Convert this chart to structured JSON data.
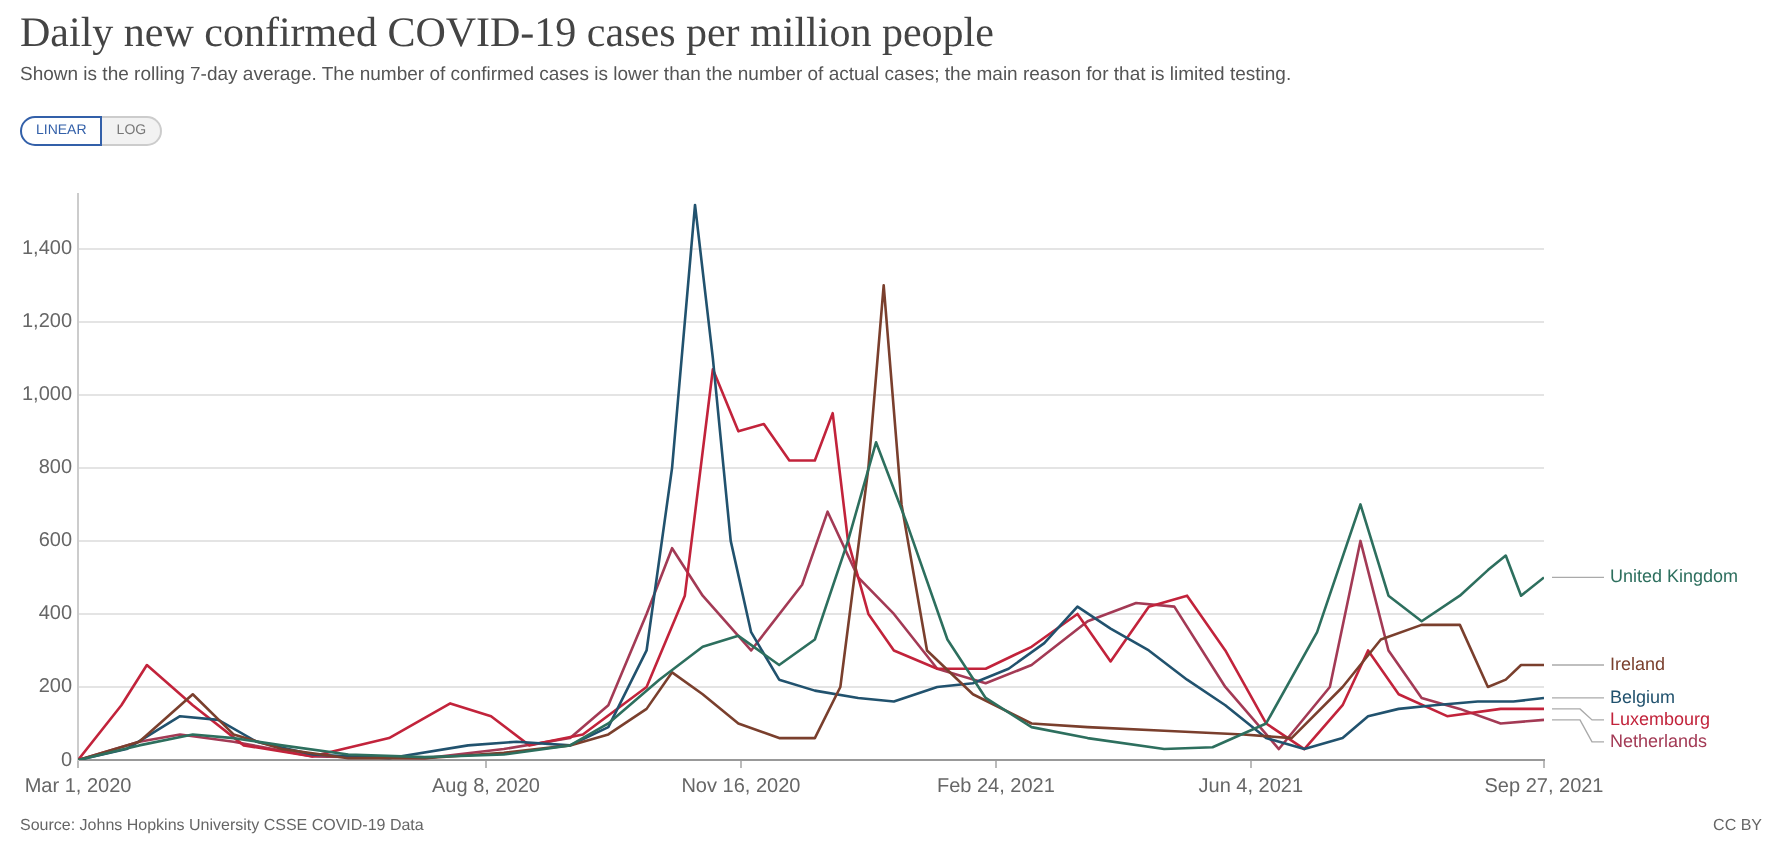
{
  "chart_data": {
    "type": "line",
    "title": "Daily new confirmed COVID-19 cases per million people",
    "subtitle": "Shown is the rolling 7-day average. The number of confirmed cases is lower than the number of actual cases; the main reason for that is limited testing.",
    "annotations": [
      "LINEAR",
      "LOG",
      "Source: Johns Hopkins University CSSE COVID-19 Data",
      "CC BY"
    ],
    "xlim": [
      "2020-03-01",
      "2021-09-27"
    ],
    "xticks": [
      {
        "value": "2020-03-01",
        "label": "Mar 1, 2020"
      },
      {
        "value": "2020-08-08",
        "label": "Aug 8, 2020"
      },
      {
        "value": "2020-11-16",
        "label": "Nov 16, 2020"
      },
      {
        "value": "2021-02-24",
        "label": "Feb 24, 2021"
      },
      {
        "value": "2021-06-04",
        "label": "Jun 4, 2021"
      },
      {
        "value": "2021-09-27",
        "label": "Sep 27, 2021"
      }
    ],
    "ylim": [
      0,
      1550
    ],
    "yticks": [
      0,
      {
        "value": 200,
        "label": "200"
      },
      {
        "value": 400,
        "label": "400"
      },
      {
        "value": 600,
        "label": "600"
      },
      {
        "value": 800,
        "label": "800"
      },
      {
        "value": 1000,
        "label": "1,000"
      },
      {
        "value": 1200,
        "label": "1,200"
      },
      {
        "value": 1400,
        "label": "1,400"
      }
    ],
    "grid": "y",
    "line_style": "solid",
    "series": [
      {
        "name": "United Kingdom",
        "color": "#2d6f5e",
        "x": [
          "2020-03-01",
          "2020-03-25",
          "2020-04-15",
          "2020-05-01",
          "2020-05-20",
          "2020-06-15",
          "2020-07-15",
          "2020-08-15",
          "2020-09-10",
          "2020-09-25",
          "2020-10-15",
          "2020-11-01",
          "2020-11-15",
          "2020-12-01",
          "2020-12-15",
          "2020-12-28",
          "2021-01-08",
          "2021-01-20",
          "2021-02-05",
          "2021-02-20",
          "2021-03-10",
          "2021-04-01",
          "2021-05-01",
          "2021-05-20",
          "2021-06-10",
          "2021-06-30",
          "2021-07-17",
          "2021-07-28",
          "2021-08-10",
          "2021-08-25",
          "2021-09-05",
          "2021-09-12",
          "2021-09-18",
          "2021-09-27"
        ],
        "values": [
          0,
          40,
          70,
          60,
          40,
          15,
          8,
          15,
          40,
          100,
          220,
          310,
          340,
          260,
          330,
          600,
          870,
          650,
          330,
          170,
          90,
          60,
          30,
          35,
          100,
          350,
          700,
          450,
          380,
          450,
          520,
          560,
          450,
          500
        ]
      },
      {
        "name": "Ireland",
        "color": "#7a3f2d",
        "x": [
          "2020-03-01",
          "2020-03-25",
          "2020-04-15",
          "2020-05-01",
          "2020-05-20",
          "2020-06-15",
          "2020-07-15",
          "2020-08-15",
          "2020-09-10",
          "2020-09-25",
          "2020-10-10",
          "2020-10-20",
          "2020-11-01",
          "2020-11-15",
          "2020-12-01",
          "2020-12-15",
          "2020-12-25",
          "2021-01-05",
          "2021-01-11",
          "2021-01-18",
          "2021-01-28",
          "2021-02-15",
          "2021-03-10",
          "2021-04-01",
          "2021-05-01",
          "2021-06-01",
          "2021-06-20",
          "2021-07-10",
          "2021-07-25",
          "2021-08-10",
          "2021-08-25",
          "2021-09-05",
          "2021-09-12",
          "2021-09-18",
          "2021-09-27"
        ],
        "values": [
          0,
          50,
          180,
          70,
          30,
          5,
          5,
          20,
          40,
          70,
          140,
          240,
          180,
          100,
          60,
          60,
          200,
          800,
          1300,
          700,
          300,
          180,
          100,
          90,
          80,
          70,
          60,
          200,
          330,
          370,
          370,
          200,
          220,
          260,
          260
        ]
      },
      {
        "name": "Belgium",
        "color": "#21526e",
        "x": [
          "2020-03-01",
          "2020-03-20",
          "2020-04-10",
          "2020-04-25",
          "2020-05-10",
          "2020-06-01",
          "2020-07-01",
          "2020-08-01",
          "2020-08-20",
          "2020-09-10",
          "2020-09-25",
          "2020-10-10",
          "2020-10-20",
          "2020-10-29",
          "2020-11-05",
          "2020-11-12",
          "2020-11-20",
          "2020-12-01",
          "2020-12-15",
          "2021-01-01",
          "2021-01-15",
          "2021-02-01",
          "2021-02-15",
          "2021-03-01",
          "2021-03-15",
          "2021-03-28",
          "2021-04-10",
          "2021-04-25",
          "2021-05-10",
          "2021-05-25",
          "2021-06-10",
          "2021-06-25",
          "2021-07-10",
          "2021-07-20",
          "2021-08-01",
          "2021-08-15",
          "2021-09-01",
          "2021-09-15",
          "2021-09-27"
        ],
        "values": [
          0,
          30,
          120,
          110,
          50,
          15,
          5,
          40,
          50,
          40,
          90,
          300,
          800,
          1520,
          1100,
          600,
          350,
          220,
          190,
          170,
          160,
          200,
          210,
          250,
          320,
          420,
          360,
          300,
          220,
          150,
          60,
          30,
          60,
          120,
          140,
          150,
          160,
          160,
          170
        ]
      },
      {
        "name": "Luxembourg",
        "color": "#c2233b",
        "x": [
          "2020-03-01",
          "2020-03-18",
          "2020-03-28",
          "2020-04-15",
          "2020-05-05",
          "2020-06-01",
          "2020-07-01",
          "2020-07-25",
          "2020-08-10",
          "2020-08-25",
          "2020-09-15",
          "2020-10-10",
          "2020-10-25",
          "2020-11-05",
          "2020-11-15",
          "2020-11-25",
          "2020-12-05",
          "2020-12-15",
          "2020-12-22",
          "2020-12-28",
          "2021-01-05",
          "2021-01-15",
          "2021-02-01",
          "2021-02-20",
          "2021-03-10",
          "2021-03-28",
          "2021-04-10",
          "2021-04-25",
          "2021-05-10",
          "2021-05-25",
          "2021-06-10",
          "2021-06-25",
          "2021-07-10",
          "2021-07-20",
          "2021-08-01",
          "2021-08-20",
          "2021-09-10",
          "2021-09-27"
        ],
        "values": [
          0,
          150,
          260,
          150,
          40,
          10,
          60,
          155,
          120,
          40,
          70,
          200,
          450,
          1070,
          900,
          920,
          820,
          820,
          950,
          600,
          400,
          300,
          250,
          250,
          310,
          400,
          270,
          420,
          450,
          300,
          100,
          30,
          150,
          300,
          180,
          120,
          140,
          140
        ]
      },
      {
        "name": "Netherlands",
        "color": "#a33a55",
        "x": [
          "2020-03-01",
          "2020-03-25",
          "2020-04-10",
          "2020-05-01",
          "2020-06-01",
          "2020-07-15",
          "2020-08-15",
          "2020-09-10",
          "2020-09-25",
          "2020-10-10",
          "2020-10-20",
          "2020-11-01",
          "2020-11-20",
          "2020-12-10",
          "2020-12-20",
          "2021-01-01",
          "2021-01-15",
          "2021-02-01",
          "2021-02-20",
          "2021-03-10",
          "2021-04-01",
          "2021-04-20",
          "2021-05-05",
          "2021-05-25",
          "2021-06-15",
          "2021-07-05",
          "2021-07-17",
          "2021-07-28",
          "2021-08-10",
          "2021-08-25",
          "2021-09-10",
          "2021-09-27"
        ],
        "values": [
          0,
          50,
          70,
          50,
          10,
          5,
          30,
          60,
          150,
          400,
          580,
          450,
          300,
          480,
          680,
          500,
          400,
          250,
          210,
          260,
          380,
          430,
          420,
          200,
          30,
          200,
          600,
          300,
          170,
          140,
          100,
          110
        ]
      }
    ]
  }
}
